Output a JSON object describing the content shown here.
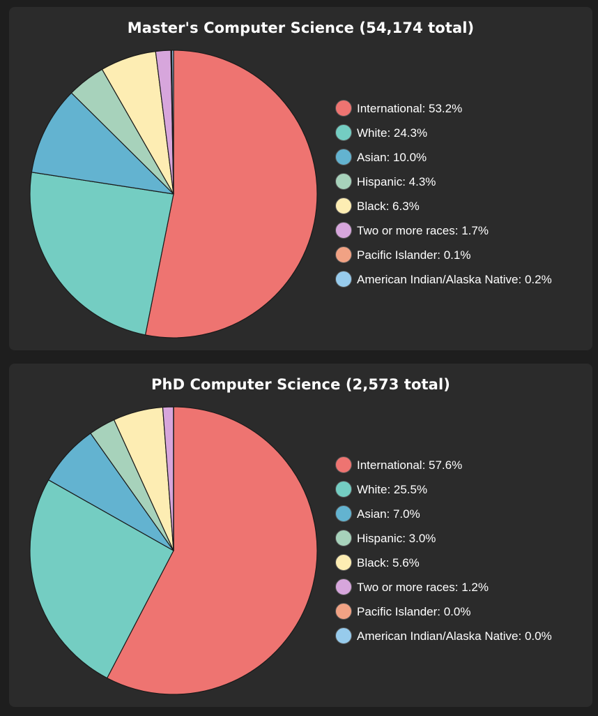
{
  "chart_data": [
    {
      "type": "pie",
      "title": "Master's Computer Science (54,174 total)",
      "categories": [
        "International",
        "White",
        "Asian",
        "Hispanic",
        "Black",
        "Two or more races",
        "Pacific Islander",
        "American Indian/Alaska Native"
      ],
      "values": [
        53.2,
        24.3,
        10.0,
        4.3,
        6.3,
        1.7,
        0.1,
        0.2
      ],
      "colors": [
        "#ee7471",
        "#74cdc2",
        "#63b3d0",
        "#a7d2bb",
        "#fdedb3",
        "#d7a6dc",
        "#f1a284",
        "#97cbec"
      ],
      "legend": [
        "International: 53.2%",
        "White: 24.3%",
        "Asian: 10.0%",
        "Hispanic: 4.3%",
        "Black: 6.3%",
        "Two or more races: 1.7%",
        "Pacific Islander: 0.1%",
        "American Indian/Alaska Native: 0.2%"
      ],
      "legend_position": "right"
    },
    {
      "type": "pie",
      "title": "PhD Computer Science (2,573 total)",
      "categories": [
        "International",
        "White",
        "Asian",
        "Hispanic",
        "Black",
        "Two or more races",
        "Pacific Islander",
        "American Indian/Alaska Native"
      ],
      "values": [
        57.6,
        25.5,
        7.0,
        3.0,
        5.6,
        1.2,
        0.0,
        0.0
      ],
      "colors": [
        "#ee7471",
        "#74cdc2",
        "#63b3d0",
        "#a7d2bb",
        "#fdedb3",
        "#d7a6dc",
        "#f1a284",
        "#97cbec"
      ],
      "legend": [
        "International: 57.6%",
        "White: 25.5%",
        "Asian: 7.0%",
        "Hispanic: 3.0%",
        "Black: 5.6%",
        "Two or more races: 1.2%",
        "Pacific Islander: 0.0%",
        "American Indian/Alaska Native: 0.0%"
      ],
      "legend_position": "right"
    }
  ]
}
